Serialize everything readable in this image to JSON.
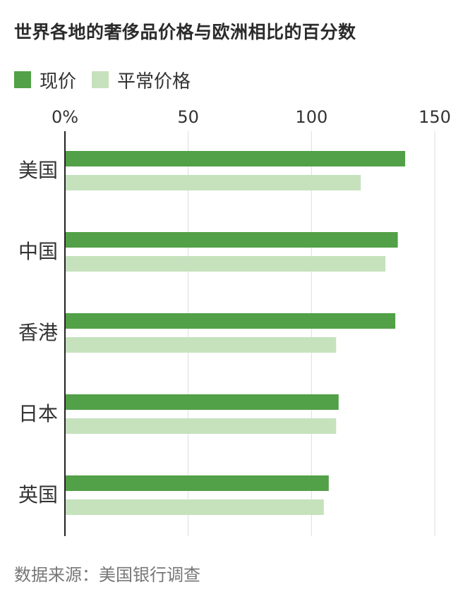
{
  "title": "世界各地的奢侈品价格与欧洲相比的百分数",
  "legend": [
    {
      "label": "现价",
      "color": "#52a047"
    },
    {
      "label": "平常价格",
      "color": "#c5e2bd"
    }
  ],
  "source": "数据来源：美国银行调查",
  "chart_data": {
    "type": "bar",
    "orientation": "horizontal",
    "title": "世界各地的奢侈品价格与欧洲相比的百分数",
    "categories": [
      "美国",
      "中国",
      "香港",
      "日本",
      "英国"
    ],
    "series": [
      {
        "name": "现价",
        "color": "#52a047",
        "values": [
          138,
          135,
          134,
          111,
          107
        ]
      },
      {
        "name": "平常价格",
        "color": "#c5e2bd",
        "values": [
          120,
          130,
          110,
          110,
          105
        ]
      }
    ],
    "xlim": [
      0,
      150
    ],
    "xticks": [
      "0%",
      "50",
      "100",
      "150"
    ],
    "xtick_values": [
      0,
      50,
      100,
      150
    ],
    "grid": "vertical",
    "legend_position": "top-left",
    "xlabel": "",
    "ylabel": ""
  }
}
